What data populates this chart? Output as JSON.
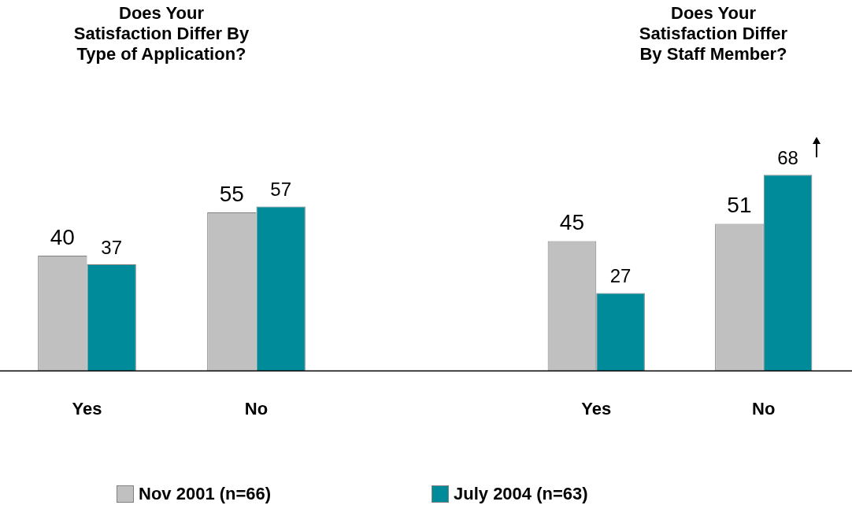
{
  "chart_data": [
    {
      "type": "bar",
      "title": "Does Your\nSatisfaction Differ By\nType of Application?",
      "categories": [
        "Yes",
        "No"
      ],
      "series": [
        {
          "name": "Nov 2001 (n=66)",
          "color": "#c0c0c0",
          "values": [
            40,
            55
          ]
        },
        {
          "name": "July 2004 (n=63)",
          "color": "#008b9a",
          "values": [
            37,
            57
          ]
        }
      ],
      "data_labels": true,
      "legend": "bottom"
    },
    {
      "type": "bar",
      "title": "Does Your\nSatisfaction Differ\nBy Staff Member?",
      "categories": [
        "Yes",
        "No"
      ],
      "series": [
        {
          "color": "#c0c0c0",
          "values": [
            45,
            51
          ]
        },
        {
          "color": "#008b9a",
          "values": [
            27,
            68
          ]
        }
      ],
      "data_labels": true
    }
  ]
}
